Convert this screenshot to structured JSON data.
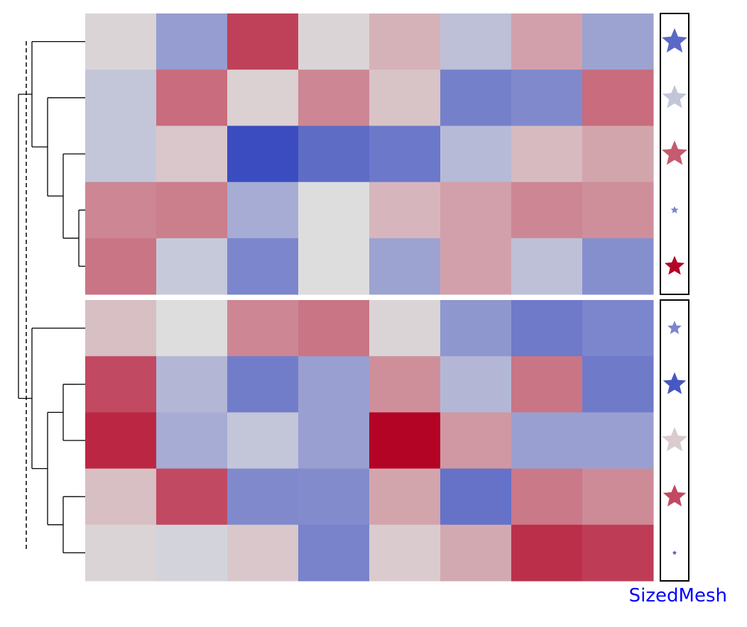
{
  "colors": {
    "cold": "#3b4cc0",
    "neutral": "#dddddd",
    "hot": "#b40426",
    "dendrogram": "#000000",
    "label": "#0000ff",
    "gap": "#ffffff"
  },
  "chart_data": {
    "type": "heatmap",
    "colormap": "coolwarm",
    "value_range": [
      0,
      1
    ],
    "columns": 8,
    "groups": [
      {
        "rows": [
          [
            0.52,
            0.28,
            0.86,
            0.52,
            0.6,
            0.4,
            0.64,
            0.3
          ],
          [
            0.42,
            0.76,
            0.53,
            0.7,
            0.56,
            0.18,
            0.21,
            0.76
          ],
          [
            0.42,
            0.55,
            0.0,
            0.11,
            0.15,
            0.38,
            0.58,
            0.63
          ],
          [
            0.7,
            0.72,
            0.33,
            0.5,
            0.59,
            0.64,
            0.7,
            0.68
          ],
          [
            0.74,
            0.43,
            0.2,
            0.5,
            0.3,
            0.64,
            0.4,
            0.23
          ]
        ],
        "markers": [
          {
            "value": 0.1,
            "size": 1.0
          },
          {
            "value": 0.42,
            "size": 0.95
          },
          {
            "value": 0.8,
            "size": 1.0
          },
          {
            "value": 0.2,
            "size": 0.3
          },
          {
            "value": 1.0,
            "size": 0.78
          }
        ]
      },
      {
        "rows": [
          [
            0.57,
            0.5,
            0.7,
            0.74,
            0.52,
            0.26,
            0.16,
            0.2
          ],
          [
            0.84,
            0.37,
            0.17,
            0.29,
            0.68,
            0.37,
            0.74,
            0.16
          ],
          [
            0.92,
            0.33,
            0.42,
            0.29,
            1.0,
            0.66,
            0.29,
            0.29
          ],
          [
            0.57,
            0.84,
            0.21,
            0.22,
            0.63,
            0.13,
            0.73,
            0.69
          ],
          [
            0.52,
            0.47,
            0.55,
            0.19,
            0.54,
            0.62,
            0.9,
            0.87
          ]
        ],
        "markers": [
          {
            "value": 0.2,
            "size": 0.55
          },
          {
            "value": 0.04,
            "size": 0.9
          },
          {
            "value": 0.54,
            "size": 1.0
          },
          {
            "value": 0.84,
            "size": 0.9
          },
          {
            "value": 0.05,
            "size": 0.18
          }
        ]
      }
    ],
    "dendrogram": {
      "cut_line": true,
      "top": [
        [
          0,
          [
            1,
            [
              2,
              [
                3,
                4
              ]
            ]
          ]
        ]
      ],
      "bottom": [
        [
          0,
          [
            [
              1,
              2
            ],
            [
              3,
              4
            ]
          ]
        ]
      ]
    },
    "side_label": "SizedMesh"
  }
}
